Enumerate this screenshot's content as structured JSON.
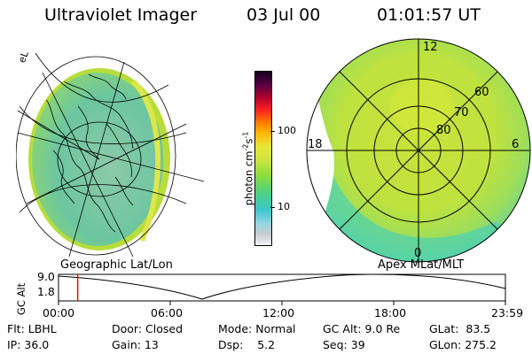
{
  "header": {
    "instrument": "Ultraviolet Imager",
    "date": "03 Jul 00",
    "time": "01:01:57 UT"
  },
  "colors": {
    "cb_stops": [
      "#f2f2f2",
      "#c8ccd2",
      "#9ad6e4",
      "#3cc8d0",
      "#4cd282",
      "#8cde3c",
      "#d2e63c",
      "#e6e632",
      "#ffb400",
      "#ff7800",
      "#ff2020",
      "#b4002a",
      "#5a0046",
      "#14001e"
    ],
    "land": "#78c8a6",
    "glow": "#b4dc3c",
    "polar_fill": "#c8e63c",
    "cursor": "#e01010"
  },
  "colorbar": {
    "unit_label": "photon cm",
    "unit_sup1": "-2",
    "unit_mid": "s",
    "unit_sup2": "-1",
    "tick_high": "100",
    "tick_low": "10"
  },
  "left_panel": {
    "corner_label": "eL",
    "caption": "Geographic Lat/Lon"
  },
  "right_panel": {
    "mlt_12": "12",
    "mlt_18": "18",
    "mlt_6": "6",
    "mlt_0": "0",
    "lat_60": "60",
    "lat_70": "70",
    "lat_80": "80",
    "caption": "Apex  MLat/MLT"
  },
  "timeline": {
    "axis_label": "GC Alt",
    "y_high": "9.0",
    "y_low": "1.8",
    "x_ticks": [
      "00:00",
      "06:00",
      "12:00",
      "18:00",
      "23:59"
    ],
    "cursor_time_hours": 1.03
  },
  "status": {
    "flt_label": "Flt:",
    "flt_value": "LBHL",
    "ip_label": "IP:",
    "ip_value": "36.0",
    "door_label": "Door:",
    "door_value": "Closed",
    "gain_label": "Gain:",
    "gain_value": "13",
    "mode_label": "Mode:",
    "mode_value": "Normal",
    "dsp_label": "Dsp:",
    "dsp_value": "5.2",
    "gcalt_label": "GC Alt:",
    "gcalt_value": "9.0 Re",
    "seq_label": "Seq:",
    "seq_value": "39",
    "glat_label": "GLat:",
    "glat_value": "83.5",
    "glon_label": "GLon:",
    "glon_value": "275.2"
  }
}
